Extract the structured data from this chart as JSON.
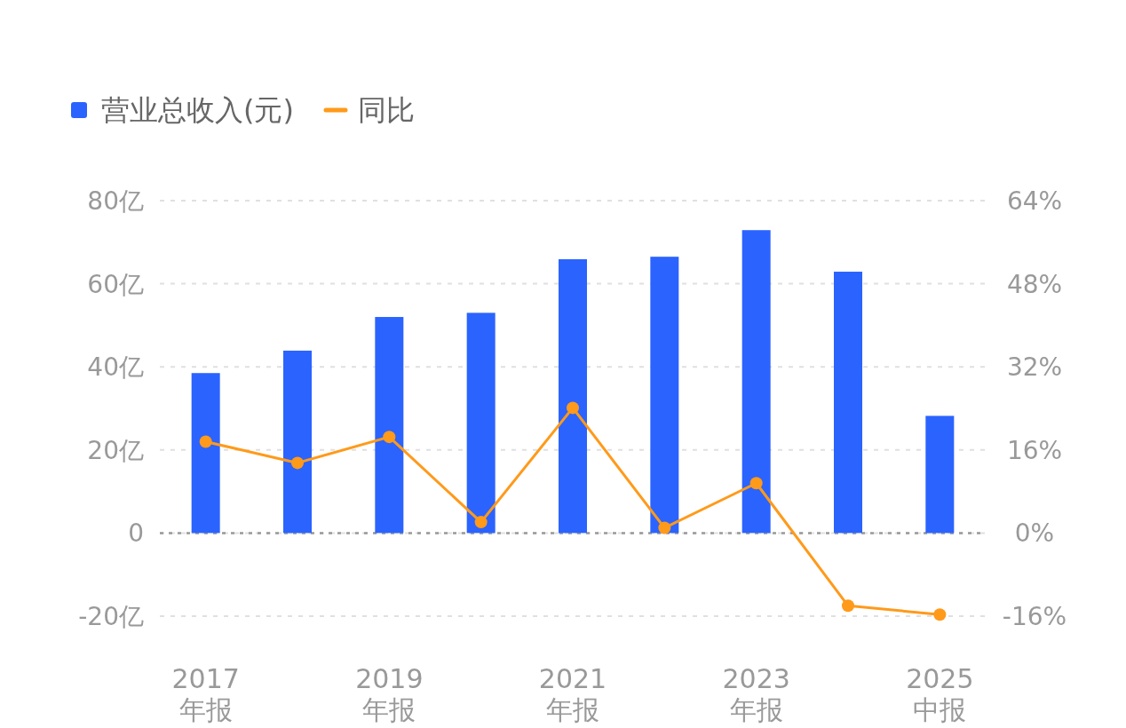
{
  "chart_data": {
    "type": "bar",
    "categories": [
      "2017 年报",
      null,
      "2019 年报",
      null,
      "2021 年报",
      null,
      "2023 年报",
      null,
      "2025 中报"
    ],
    "series": [
      {
        "name": "营业总收入(元)",
        "color": "#2b63ff",
        "values": [
          38.5,
          43.9,
          52.0,
          53.0,
          65.9,
          66.5,
          72.9,
          62.9,
          28.2
        ]
      },
      {
        "name": "同比",
        "type": "line",
        "axis": "y2",
        "color": "#ff9a1a",
        "marker": "circle",
        "values": [
          17.6,
          13.5,
          18.5,
          2.1,
          24.1,
          1.0,
          9.6,
          -14.0,
          -15.7
        ]
      }
    ],
    "ylim": [
      -20,
      80
    ],
    "yticks": [
      {
        "value": -20,
        "label": "-20亿"
      },
      {
        "value": 0,
        "label": "0"
      },
      {
        "value": 20,
        "label": "20亿"
      },
      {
        "value": 40,
        "label": "40亿"
      },
      {
        "value": 60,
        "label": "60亿"
      },
      {
        "value": 80,
        "label": "80亿"
      }
    ],
    "y2lim": [
      -16,
      64
    ],
    "y2ticks": [
      {
        "value": -16,
        "label": "-16%"
      },
      {
        "value": 0,
        "label": "0%"
      },
      {
        "value": 16,
        "label": "16%"
      },
      {
        "value": 32,
        "label": "32%"
      },
      {
        "value": 48,
        "label": "48%"
      },
      {
        "value": 64,
        "label": "64%"
      }
    ],
    "ref_lines": [
      {
        "axis": "y",
        "value": 0,
        "color": "#999999",
        "line_style": "dotted"
      }
    ],
    "grid": "y",
    "legend": "top left"
  }
}
